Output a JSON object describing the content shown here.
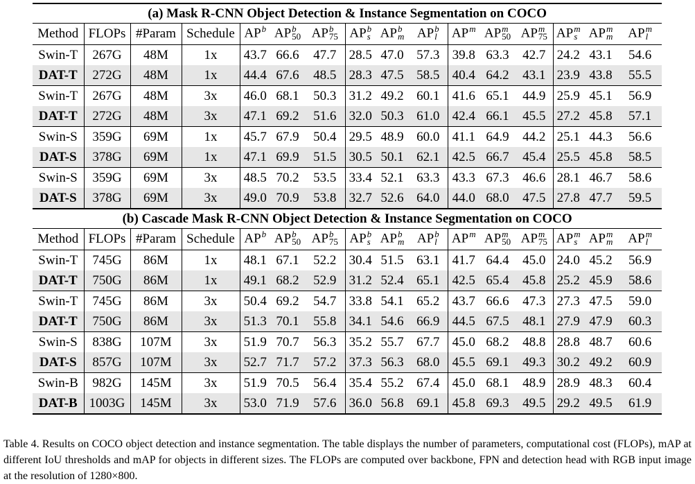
{
  "sections": [
    {
      "title": "(a) Mask R-CNN Object Detection & Instance Segmentation on COCO",
      "columns": [
        "Method",
        "FLOPs",
        "#Param",
        "Schedule",
        {
          "base": "AP",
          "sup": "b"
        },
        {
          "base": "AP",
          "sup": "b",
          "sub": "50"
        },
        {
          "base": "AP",
          "sup": "b",
          "sub": "75"
        },
        {
          "base": "AP",
          "sup": "b",
          "sub": "s"
        },
        {
          "base": "AP",
          "sup": "b",
          "sub": "m"
        },
        {
          "base": "AP",
          "sup": "b",
          "sub": "l"
        },
        {
          "base": "AP",
          "sup": "m"
        },
        {
          "base": "AP",
          "sup": "m",
          "sub": "50"
        },
        {
          "base": "AP",
          "sup": "m",
          "sub": "75"
        },
        {
          "base": "AP",
          "sup": "m",
          "sub": "s"
        },
        {
          "base": "AP",
          "sup": "m",
          "sub": "m"
        },
        {
          "base": "AP",
          "sup": "m",
          "sub": "l"
        }
      ],
      "rows": [
        [
          "Swin-T",
          "267G",
          "48M",
          "1x",
          "43.7",
          "66.6",
          "47.7",
          "28.5",
          "47.0",
          "57.3",
          "39.8",
          "63.3",
          "42.7",
          "24.2",
          "43.1",
          "54.6"
        ],
        [
          "DAT-T",
          "272G",
          "48M",
          "1x",
          "44.4",
          "67.6",
          "48.5",
          "28.3",
          "47.5",
          "58.5",
          "40.4",
          "64.2",
          "43.1",
          "23.9",
          "43.8",
          "55.5"
        ],
        [
          "Swin-T",
          "267G",
          "48M",
          "3x",
          "46.0",
          "68.1",
          "50.3",
          "31.2",
          "49.2",
          "60.1",
          "41.6",
          "65.1",
          "44.9",
          "25.9",
          "45.1",
          "56.9"
        ],
        [
          "DAT-T",
          "272G",
          "48M",
          "3x",
          "47.1",
          "69.2",
          "51.6",
          "32.0",
          "50.3",
          "61.0",
          "42.4",
          "66.1",
          "45.5",
          "27.2",
          "45.8",
          "57.1"
        ],
        [
          "Swin-S",
          "359G",
          "69M",
          "1x",
          "45.7",
          "67.9",
          "50.4",
          "29.5",
          "48.9",
          "60.0",
          "41.1",
          "64.9",
          "44.2",
          "25.1",
          "44.3",
          "56.6"
        ],
        [
          "DAT-S",
          "378G",
          "69M",
          "1x",
          "47.1",
          "69.9",
          "51.5",
          "30.5",
          "50.1",
          "62.1",
          "42.5",
          "66.7",
          "45.4",
          "25.5",
          "45.8",
          "58.5"
        ],
        [
          "Swin-S",
          "359G",
          "69M",
          "3x",
          "48.5",
          "70.2",
          "53.5",
          "33.4",
          "52.1",
          "63.3",
          "43.3",
          "67.3",
          "46.6",
          "28.1",
          "46.7",
          "58.6"
        ],
        [
          "DAT-S",
          "378G",
          "69M",
          "3x",
          "49.0",
          "70.9",
          "53.8",
          "32.7",
          "52.6",
          "64.0",
          "44.0",
          "68.0",
          "47.5",
          "27.8",
          "47.7",
          "59.5"
        ]
      ]
    },
    {
      "title": "(b) Cascade Mask R-CNN Object Detection & Instance Segmentation on COCO",
      "columns": [
        "Method",
        "FLOPs",
        "#Param",
        "Schedule",
        {
          "base": "AP",
          "sup": "b"
        },
        {
          "base": "AP",
          "sup": "b",
          "sub": "50"
        },
        {
          "base": "AP",
          "sup": "b",
          "sub": "75"
        },
        {
          "base": "AP",
          "sup": "b",
          "sub": "s"
        },
        {
          "base": "AP",
          "sup": "b",
          "sub": "m"
        },
        {
          "base": "AP",
          "sup": "b",
          "sub": "l"
        },
        {
          "base": "AP",
          "sup": "m"
        },
        {
          "base": "AP",
          "sup": "m",
          "sub": "50"
        },
        {
          "base": "AP",
          "sup": "m",
          "sub": "75"
        },
        {
          "base": "AP",
          "sup": "m",
          "sub": "s"
        },
        {
          "base": "AP",
          "sup": "m",
          "sub": "m"
        },
        {
          "base": "AP",
          "sup": "m",
          "sub": "l"
        }
      ],
      "rows": [
        [
          "Swin-T",
          "745G",
          "86M",
          "1x",
          "48.1",
          "67.1",
          "52.2",
          "30.4",
          "51.5",
          "63.1",
          "41.7",
          "64.4",
          "45.0",
          "24.0",
          "45.2",
          "56.9"
        ],
        [
          "DAT-T",
          "750G",
          "86M",
          "1x",
          "49.1",
          "68.2",
          "52.9",
          "31.2",
          "52.4",
          "65.1",
          "42.5",
          "65.4",
          "45.8",
          "25.2",
          "45.9",
          "58.6"
        ],
        [
          "Swin-T",
          "745G",
          "86M",
          "3x",
          "50.4",
          "69.2",
          "54.7",
          "33.8",
          "54.1",
          "65.2",
          "43.7",
          "66.6",
          "47.3",
          "27.3",
          "47.5",
          "59.0"
        ],
        [
          "DAT-T",
          "750G",
          "86M",
          "3x",
          "51.3",
          "70.1",
          "55.8",
          "34.1",
          "54.6",
          "66.9",
          "44.5",
          "67.5",
          "48.1",
          "27.9",
          "47.9",
          "60.3"
        ],
        [
          "Swin-S",
          "838G",
          "107M",
          "3x",
          "51.9",
          "70.7",
          "56.3",
          "35.2",
          "55.7",
          "67.7",
          "45.0",
          "68.2",
          "48.8",
          "28.8",
          "48.7",
          "60.6"
        ],
        [
          "DAT-S",
          "857G",
          "107M",
          "3x",
          "52.7",
          "71.7",
          "57.2",
          "37.3",
          "56.3",
          "68.0",
          "45.5",
          "69.1",
          "49.3",
          "30.2",
          "49.2",
          "60.9"
        ],
        [
          "Swin-B",
          "982G",
          "145M",
          "3x",
          "51.9",
          "70.5",
          "56.4",
          "35.4",
          "55.2",
          "67.4",
          "45.0",
          "68.1",
          "48.9",
          "28.9",
          "48.3",
          "60.4"
        ],
        [
          "DAT-B",
          "1003G",
          "145M",
          "3x",
          "53.0",
          "71.9",
          "57.6",
          "36.0",
          "56.8",
          "69.1",
          "45.8",
          "69.3",
          "49.5",
          "29.2",
          "49.5",
          "61.9"
        ]
      ]
    }
  ],
  "caption": "Table 4. Results on COCO object detection and instance segmentation. The table displays the number of parameters, computational cost (FLOPs), mAP at different IoU thresholds and mAP for objects in different sizes. The FLOPs are computed over backbone, FPN and detection head with RGB input image at the resolution of 1280×800."
}
